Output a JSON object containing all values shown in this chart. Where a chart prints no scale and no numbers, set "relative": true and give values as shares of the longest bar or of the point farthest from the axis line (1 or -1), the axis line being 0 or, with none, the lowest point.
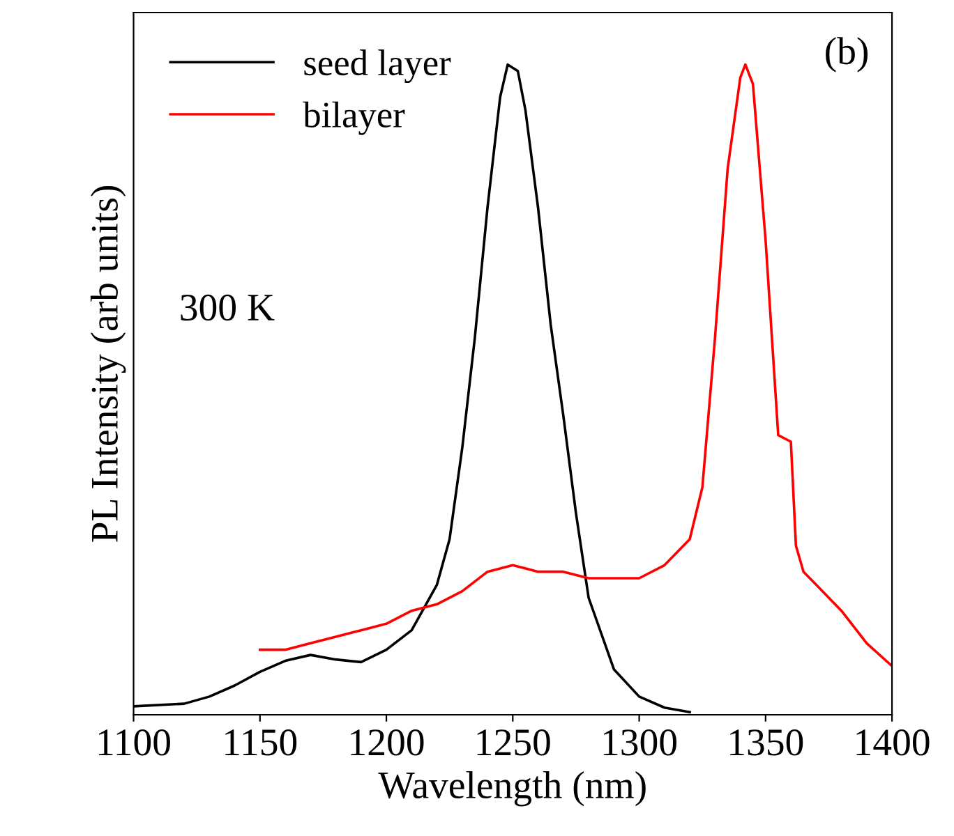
{
  "chart_data": {
    "type": "line",
    "relative": true,
    "xlabel": "Wavelength (nm)",
    "ylabel": "PL Intensity (arb units)",
    "xlim": [
      1100,
      1400
    ],
    "xticks": [
      1100,
      1150,
      1200,
      1250,
      1300,
      1350,
      1400
    ],
    "annotations": [
      "300 K",
      "(b)"
    ],
    "legend": "top left",
    "grid": false,
    "series": [
      {
        "name": "seed layer",
        "color": "#000000",
        "x": [
          1100,
          1120,
          1130,
          1140,
          1150,
          1160,
          1170,
          1180,
          1190,
          1200,
          1210,
          1220,
          1225,
          1230,
          1235,
          1240,
          1245,
          1248,
          1252,
          1255,
          1260,
          1265,
          1270,
          1275,
          1280,
          1290,
          1300,
          1310,
          1320
        ],
        "values": [
          0.013,
          0.017,
          0.028,
          0.045,
          0.066,
          0.083,
          0.092,
          0.085,
          0.081,
          0.1,
          0.13,
          0.2,
          0.27,
          0.41,
          0.58,
          0.78,
          0.95,
          1.0,
          0.99,
          0.93,
          0.78,
          0.6,
          0.46,
          0.31,
          0.18,
          0.07,
          0.028,
          0.011,
          0.004
        ]
      },
      {
        "name": "bilayer",
        "color": "#ff0000",
        "x": [
          1150,
          1160,
          1170,
          1180,
          1190,
          1200,
          1210,
          1220,
          1230,
          1240,
          1250,
          1260,
          1270,
          1280,
          1290,
          1300,
          1310,
          1320,
          1325,
          1330,
          1335,
          1340,
          1342,
          1345,
          1350,
          1355,
          1360,
          1362,
          1365,
          1370,
          1380,
          1390,
          1400
        ],
        "values": [
          0.1,
          0.1,
          0.11,
          0.12,
          0.13,
          0.14,
          0.16,
          0.17,
          0.19,
          0.22,
          0.23,
          0.22,
          0.22,
          0.21,
          0.21,
          0.21,
          0.23,
          0.27,
          0.35,
          0.58,
          0.84,
          0.98,
          1.0,
          0.97,
          0.73,
          0.43,
          0.42,
          0.26,
          0.22,
          0.2,
          0.16,
          0.11,
          0.075
        ]
      }
    ]
  }
}
